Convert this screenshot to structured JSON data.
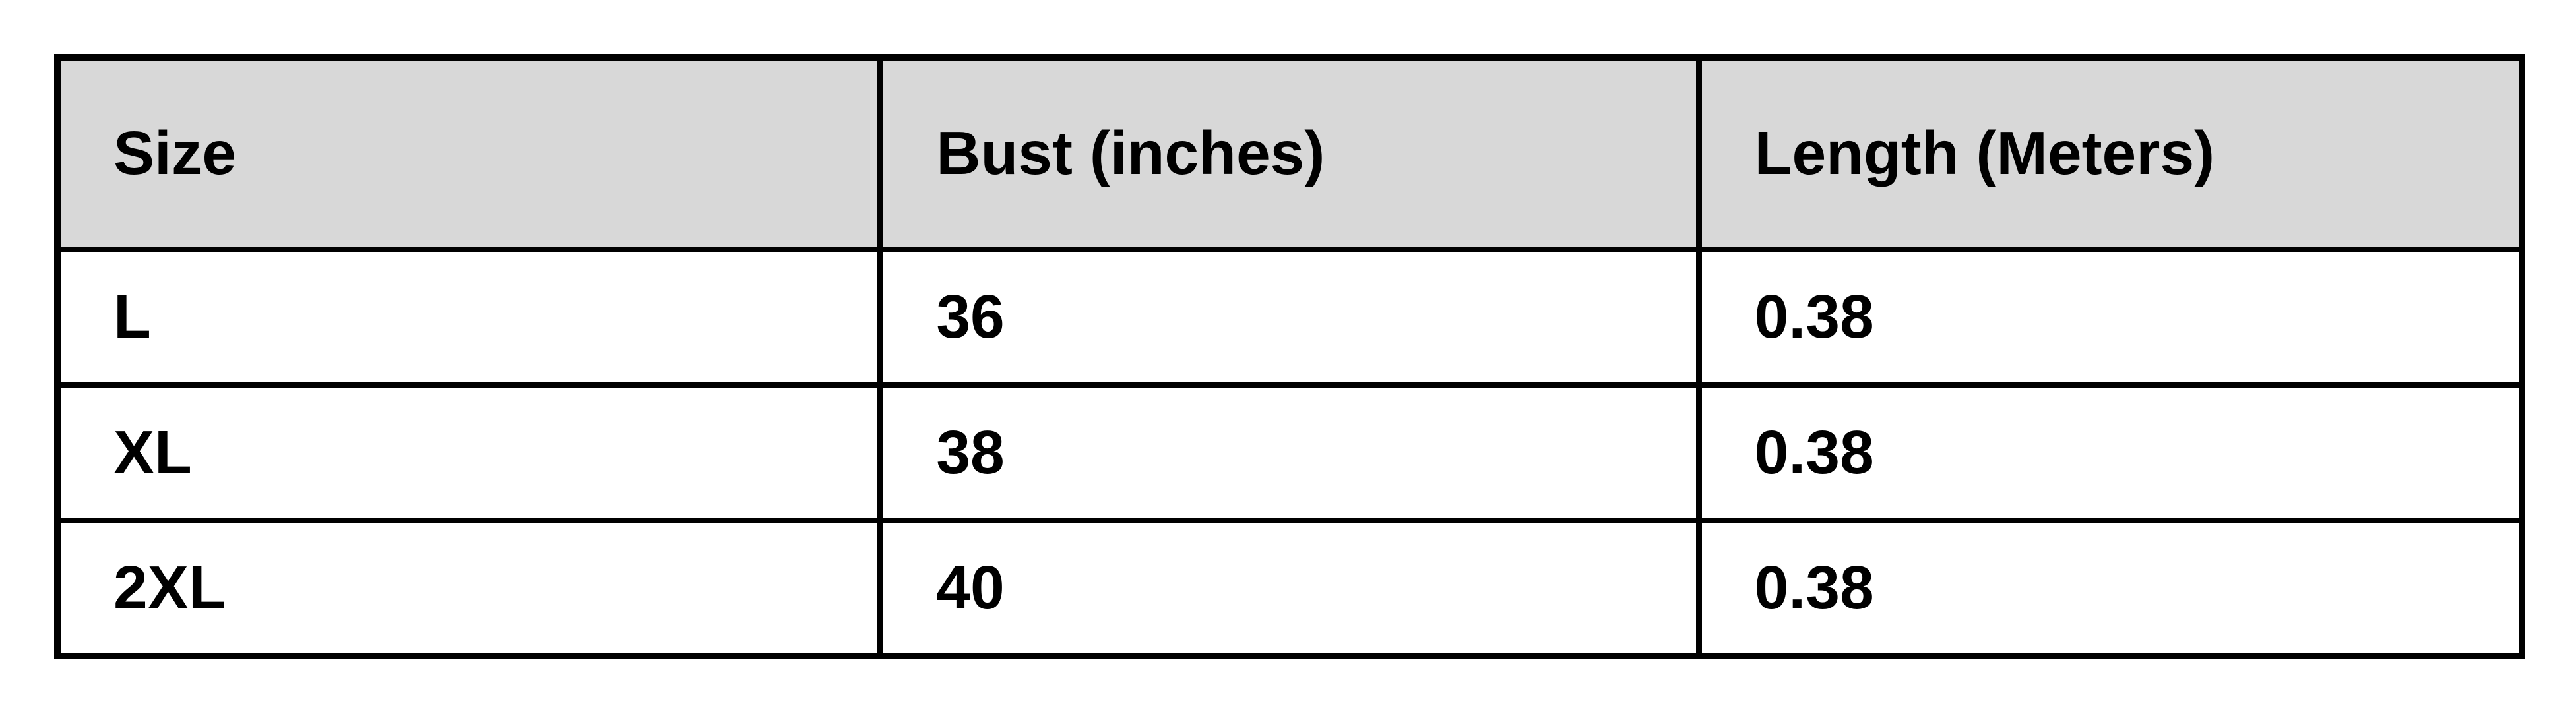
{
  "page": {
    "background": "#ffffff"
  },
  "table": {
    "columns": [
      "Size",
      "Bust (inches)",
      "Length (Meters)"
    ],
    "rows": [
      {
        "size": "L",
        "bust": "36",
        "length": "0.38"
      },
      {
        "size": "XL",
        "bust": "38",
        "length": "0.38"
      },
      {
        "size": "2XL",
        "bust": "40",
        "length": "0.38"
      }
    ],
    "style": {
      "header_bg": "#d8d8d8",
      "border_color": "#000000",
      "text_color": "#000000",
      "page_bg": "#ffffff"
    }
  },
  "chart_data": {
    "type": "table",
    "columns": [
      "Size",
      "Bust (inches)",
      "Length (Meters)"
    ],
    "rows": [
      [
        "L",
        "36",
        "0.38"
      ],
      [
        "XL",
        "38",
        "0.38"
      ],
      [
        "2XL",
        "40",
        "0.38"
      ]
    ],
    "layout_hints": {
      "header_fill": "#d8d8d8",
      "grid": "on",
      "text_align": "left",
      "font_weight": "bold"
    }
  }
}
